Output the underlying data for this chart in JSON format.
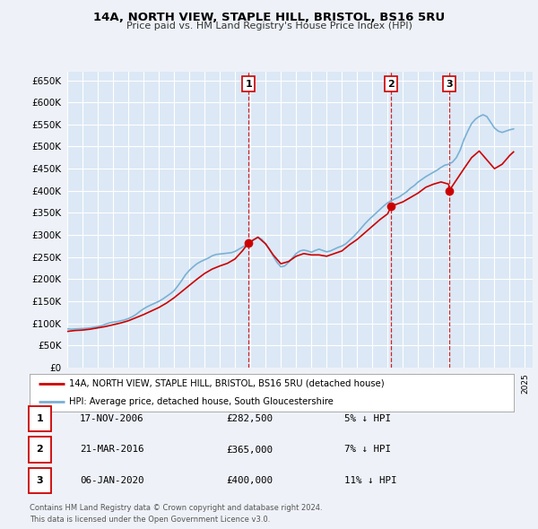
{
  "title": "14A, NORTH VIEW, STAPLE HILL, BRISTOL, BS16 5RU",
  "subtitle": "Price paid vs. HM Land Registry's House Price Index (HPI)",
  "background_color": "#eef2f8",
  "plot_bg_color": "#dce8f5",
  "grid_color": "#ffffff",
  "ylim": [
    0,
    670000
  ],
  "yticks": [
    0,
    50000,
    100000,
    150000,
    200000,
    250000,
    300000,
    350000,
    400000,
    450000,
    500000,
    550000,
    600000,
    650000
  ],
  "xlim_start": 1995.0,
  "xlim_end": 2025.5,
  "sale_color": "#cc0000",
  "hpi_color": "#7ab0d4",
  "vline_color": "#cc0000",
  "legend_label_sale": "14A, NORTH VIEW, STAPLE HILL, BRISTOL, BS16 5RU (detached house)",
  "legend_label_hpi": "HPI: Average price, detached house, South Gloucestershire",
  "transactions": [
    {
      "label": "1",
      "date": 2006.88,
      "price": 282500,
      "pct": "5%",
      "date_str": "17-NOV-2006",
      "price_str": "£282,500"
    },
    {
      "label": "2",
      "date": 2016.22,
      "price": 365000,
      "pct": "7%",
      "date_str": "21-MAR-2016",
      "price_str": "£365,000"
    },
    {
      "label": "3",
      "date": 2020.03,
      "price": 400000,
      "pct": "11%",
      "date_str": "06-JAN-2020",
      "price_str": "£400,000"
    }
  ],
  "footer": [
    "Contains HM Land Registry data © Crown copyright and database right 2024.",
    "This data is licensed under the Open Government Licence v3.0."
  ],
  "hpi_data": {
    "years": [
      1995.0,
      1995.25,
      1995.5,
      1995.75,
      1996.0,
      1996.25,
      1996.5,
      1996.75,
      1997.0,
      1997.25,
      1997.5,
      1997.75,
      1998.0,
      1998.25,
      1998.5,
      1998.75,
      1999.0,
      1999.25,
      1999.5,
      1999.75,
      2000.0,
      2000.25,
      2000.5,
      2000.75,
      2001.0,
      2001.25,
      2001.5,
      2001.75,
      2002.0,
      2002.25,
      2002.5,
      2002.75,
      2003.0,
      2003.25,
      2003.5,
      2003.75,
      2004.0,
      2004.25,
      2004.5,
      2004.75,
      2005.0,
      2005.25,
      2005.5,
      2005.75,
      2006.0,
      2006.25,
      2006.5,
      2006.75,
      2007.0,
      2007.25,
      2007.5,
      2007.75,
      2008.0,
      2008.25,
      2008.5,
      2008.75,
      2009.0,
      2009.25,
      2009.5,
      2009.75,
      2010.0,
      2010.25,
      2010.5,
      2010.75,
      2011.0,
      2011.25,
      2011.5,
      2011.75,
      2012.0,
      2012.25,
      2012.5,
      2012.75,
      2013.0,
      2013.25,
      2013.5,
      2013.75,
      2014.0,
      2014.25,
      2014.5,
      2014.75,
      2015.0,
      2015.25,
      2015.5,
      2015.75,
      2016.0,
      2016.25,
      2016.5,
      2016.75,
      2017.0,
      2017.25,
      2017.5,
      2017.75,
      2018.0,
      2018.25,
      2018.5,
      2018.75,
      2019.0,
      2019.25,
      2019.5,
      2019.75,
      2020.0,
      2020.25,
      2020.5,
      2020.75,
      2021.0,
      2021.25,
      2021.5,
      2021.75,
      2022.0,
      2022.25,
      2022.5,
      2022.75,
      2023.0,
      2023.25,
      2023.5,
      2023.75,
      2024.0,
      2024.25
    ],
    "values": [
      88000,
      87000,
      87500,
      88000,
      88500,
      89000,
      90000,
      91500,
      93000,
      95000,
      98000,
      101000,
      103000,
      104000,
      106000,
      108000,
      111000,
      115000,
      120000,
      127000,
      133000,
      138000,
      142000,
      146000,
      150000,
      155000,
      161000,
      167000,
      174000,
      185000,
      197000,
      210000,
      220000,
      228000,
      235000,
      240000,
      244000,
      248000,
      253000,
      256000,
      257000,
      258000,
      259000,
      260000,
      263000,
      268000,
      273000,
      278000,
      283000,
      290000,
      295000,
      290000,
      280000,
      268000,
      252000,
      238000,
      228000,
      230000,
      238000,
      248000,
      258000,
      264000,
      266000,
      264000,
      261000,
      265000,
      268000,
      265000,
      262000,
      264000,
      268000,
      272000,
      275000,
      280000,
      288000,
      296000,
      305000,
      315000,
      325000,
      334000,
      342000,
      350000,
      358000,
      366000,
      373000,
      378000,
      382000,
      386000,
      392000,
      398000,
      406000,
      412000,
      420000,
      426000,
      432000,
      437000,
      442000,
      447000,
      453000,
      458000,
      460000,
      465000,
      475000,
      492000,
      516000,
      535000,
      552000,
      562000,
      568000,
      572000,
      568000,
      555000,
      542000,
      535000,
      532000,
      535000,
      538000,
      540000
    ]
  },
  "sale_data": {
    "years": [
      1995.0,
      1995.5,
      1996.0,
      1996.5,
      1997.0,
      1997.5,
      1998.0,
      1998.5,
      1999.0,
      1999.5,
      2000.0,
      2000.5,
      2001.0,
      2001.5,
      2002.0,
      2002.5,
      2003.0,
      2003.5,
      2004.0,
      2004.5,
      2005.0,
      2005.5,
      2006.0,
      2006.5,
      2006.88,
      2007.5,
      2008.0,
      2008.5,
      2009.0,
      2009.5,
      2010.0,
      2010.5,
      2011.0,
      2011.5,
      2012.0,
      2012.5,
      2013.0,
      2013.5,
      2014.0,
      2014.5,
      2015.0,
      2015.5,
      2016.0,
      2016.22,
      2017.0,
      2017.5,
      2018.0,
      2018.5,
      2019.0,
      2019.5,
      2020.0,
      2020.03,
      2021.0,
      2021.5,
      2022.0,
      2022.5,
      2023.0,
      2023.5,
      2024.0,
      2024.25
    ],
    "values": [
      82000,
      84000,
      85000,
      87000,
      90000,
      93000,
      97000,
      101000,
      106000,
      113000,
      120000,
      128000,
      136000,
      146000,
      158000,
      172000,
      186000,
      200000,
      213000,
      223000,
      230000,
      236000,
      246000,
      265000,
      282500,
      295000,
      280000,
      255000,
      235000,
      240000,
      252000,
      258000,
      255000,
      255000,
      252000,
      258000,
      264000,
      278000,
      290000,
      305000,
      320000,
      335000,
      348000,
      365000,
      375000,
      385000,
      395000,
      408000,
      415000,
      420000,
      415000,
      400000,
      450000,
      475000,
      490000,
      470000,
      450000,
      460000,
      480000,
      488000
    ]
  }
}
